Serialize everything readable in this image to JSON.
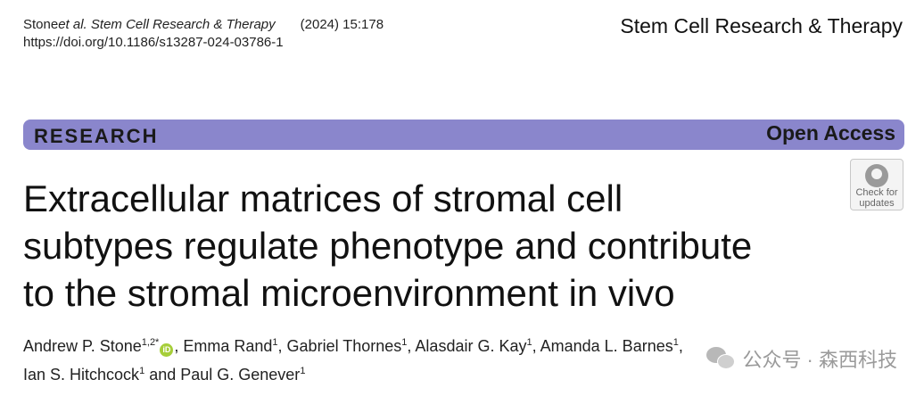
{
  "header": {
    "citation_authors": "Stone ",
    "citation_etal_journal": "et al. Stem Cell Research & Therapy",
    "citation_year_vol": "(2024) 15:178",
    "doi": "https://doi.org/10.1186/s13287-024-03786-1",
    "journal_name": "Stem Cell Research & Therapy"
  },
  "banner": {
    "label": "RESEARCH",
    "open_access": "Open Access",
    "color": "#8a86cc"
  },
  "check_updates": {
    "line1": "Check for",
    "line2": "updates",
    "icon": "check-for-updates-icon"
  },
  "article": {
    "title_line1": "Extracellular matrices of stromal cell",
    "title_line2": "subtypes regulate phenotype and contribute",
    "title_line3": "to the stromal microenvironment in vivo"
  },
  "authors": [
    {
      "name": "Andrew P. Stone",
      "aff": "1,2*"
    },
    {
      "name": "Emma Rand",
      "aff": "1"
    },
    {
      "name": "Gabriel Thornes",
      "aff": "1"
    },
    {
      "name": "Alasdair G. Kay",
      "aff": "1"
    },
    {
      "name": "Amanda L. Barnes",
      "aff": "1"
    },
    {
      "name": "Ian S. Hitchcock",
      "aff": "1"
    },
    {
      "name": "Paul G. Genever",
      "aff": "1"
    }
  ],
  "orcid_label": "iD",
  "watermark": {
    "text": "公众号 · 森西科技",
    "icon": "wechat-icon"
  }
}
